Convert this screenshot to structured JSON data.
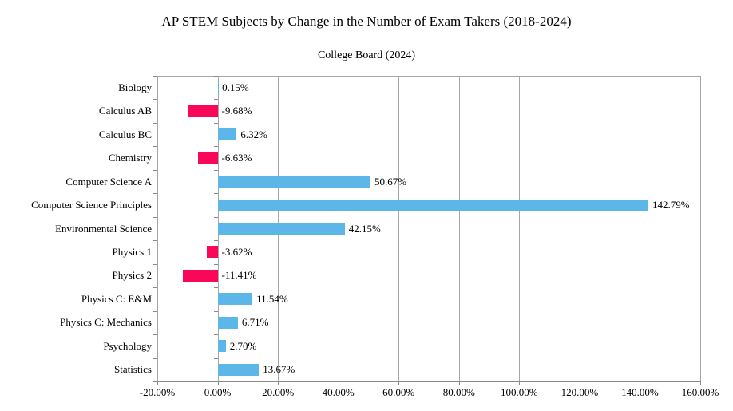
{
  "chart_data": {
    "type": "bar",
    "orientation": "horizontal",
    "title": "AP STEM Subjects by Change in the Number of Exam Takers (2018-2024)",
    "subtitle": "College Board (2024)",
    "categories": [
      "Biology",
      "Calculus AB",
      "Calculus BC",
      "Chemistry",
      "Computer Science A",
      "Computer Science Principles",
      "Environmental Science",
      "Physics 1",
      "Physics 2",
      "Physics C: E&M",
      "Physics C: Mechanics",
      "Psychology",
      "Statistics"
    ],
    "values": [
      0.15,
      -9.68,
      6.32,
      -6.63,
      50.67,
      142.79,
      42.15,
      -3.62,
      -11.41,
      11.54,
      6.71,
      2.7,
      13.67
    ],
    "value_labels": [
      "0.15%",
      "-9.68%",
      "6.32%",
      "-6.63%",
      "50.67%",
      "142.79%",
      "42.15%",
      "-3.62%",
      "-11.41%",
      "11.54%",
      "6.71%",
      "2.70%",
      "13.67%"
    ],
    "x_tick_labels": [
      "-20.00%",
      "0.00%",
      "20.00%",
      "40.00%",
      "60.00%",
      "80.00%",
      "100.00%",
      "120.00%",
      "140.00%",
      "160.00%"
    ],
    "xlim": [
      -20,
      160
    ],
    "x_tick_step": 20,
    "grid": true,
    "legend": "none",
    "colors": {
      "positive_bar": "#5CB6E8",
      "negative_bar": "#F9085A",
      "gridline": "#A6A6A6",
      "axis": "#8A8A8A",
      "text": "#000000",
      "background": "#FFFFFF"
    }
  }
}
